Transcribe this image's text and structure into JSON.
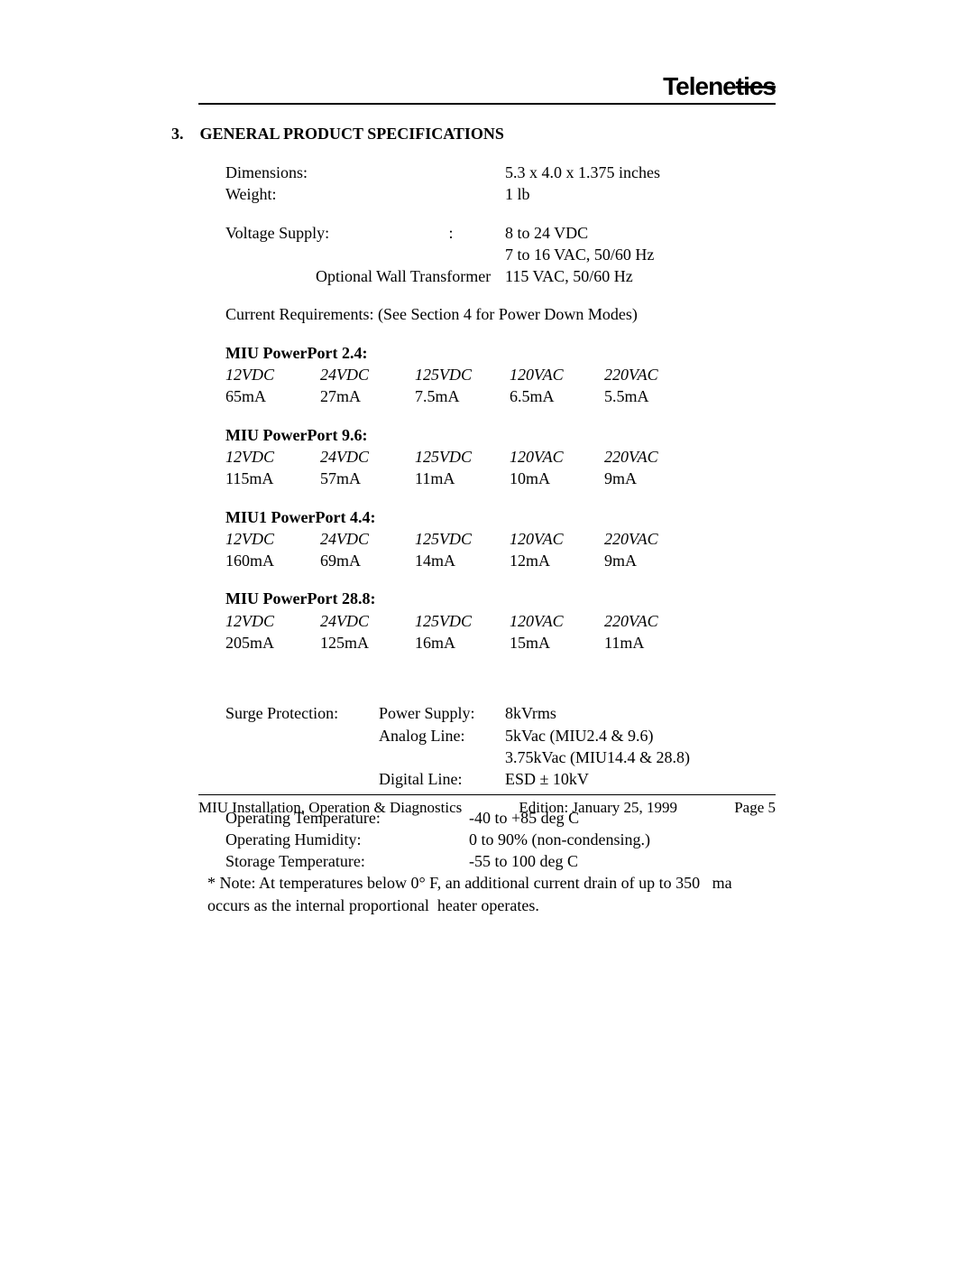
{
  "brand": "Telenetics",
  "section_number": "3.",
  "section_title": "GENERAL PRODUCT SPECIFICATIONS",
  "specs": {
    "dimensions_label": "Dimensions:",
    "dimensions_value": "5.3 x 4.0 x 1.375 inches",
    "weight_label": "Weight:",
    "weight_value": "1 lb",
    "voltage_label": "Voltage Supply:",
    "voltage_mid": ":",
    "voltage_value1": "8 to 24 VDC",
    "voltage_value2": "7 to 16 VAC, 50/60 Hz",
    "wall_transformer_label": "Optional Wall Transformer",
    "wall_transformer_value": "115 VAC, 50/60 Hz",
    "current_req": "Current Requirements:  (See Section 4 for Power Down Modes)"
  },
  "tables": [
    {
      "title": "MIU PowerPort 2.4:",
      "headers": [
        "12VDC",
        "24VDC",
        "125VDC",
        "120VAC",
        "220VAC"
      ],
      "values": [
        "65mA",
        "27mA",
        "7.5mA",
        "6.5mA",
        "5.5mA"
      ]
    },
    {
      "title": "MIU PowerPort 9.6:",
      "headers": [
        "12VDC",
        "24VDC",
        "125VDC",
        "120VAC",
        "220VAC"
      ],
      "values": [
        "115mA",
        "57mA",
        "11mA",
        "10mA",
        "9mA"
      ]
    },
    {
      "title": "MIU1 PowerPort 4.4:",
      "headers": [
        "12VDC",
        "24VDC",
        "125VDC",
        "120VAC",
        "220VAC"
      ],
      "values": [
        "160mA",
        "69mA",
        "14mA",
        "12mA",
        "9mA"
      ]
    },
    {
      "title": "MIU PowerPort 28.8:",
      "headers": [
        "12VDC",
        "24VDC",
        "125VDC",
        "120VAC",
        "220VAC"
      ],
      "values": [
        "205mA",
        "125mA",
        "16mA",
        "15mA",
        "11mA"
      ]
    }
  ],
  "surge": {
    "label": "Surge Protection:",
    "rows": [
      {
        "k": "Power Supply:",
        "v": "8kVrms"
      },
      {
        "k": "Analog Line:",
        "v": "5kVac (MIU2.4 & 9.6)"
      },
      {
        "k": "",
        "v": "3.75kVac (MIU14.4 & 28.8)"
      },
      {
        "k": "Digital Line:",
        "v": "ESD ± 10kV"
      }
    ]
  },
  "env": {
    "op_temp_l": "Operating Temperature:",
    "op_temp_v": "-40 to +85 deg C",
    "op_hum_l": "Operating Humidity:",
    "op_hum_v": "0 to 90% (non-condensing.)",
    "stor_temp_l": "Storage Temperature:",
    "stor_temp_v": "-55 to 100 deg C"
  },
  "note": "* Note:  At temperatures below 0° F, an additional current drain of up to 350   ma occurs as the internal proportional  heater operates.",
  "footer": {
    "left": "MIU Installation, Operation & Diagnostics",
    "mid": "Edition:  January 25, 1999",
    "right": "Page 5"
  }
}
